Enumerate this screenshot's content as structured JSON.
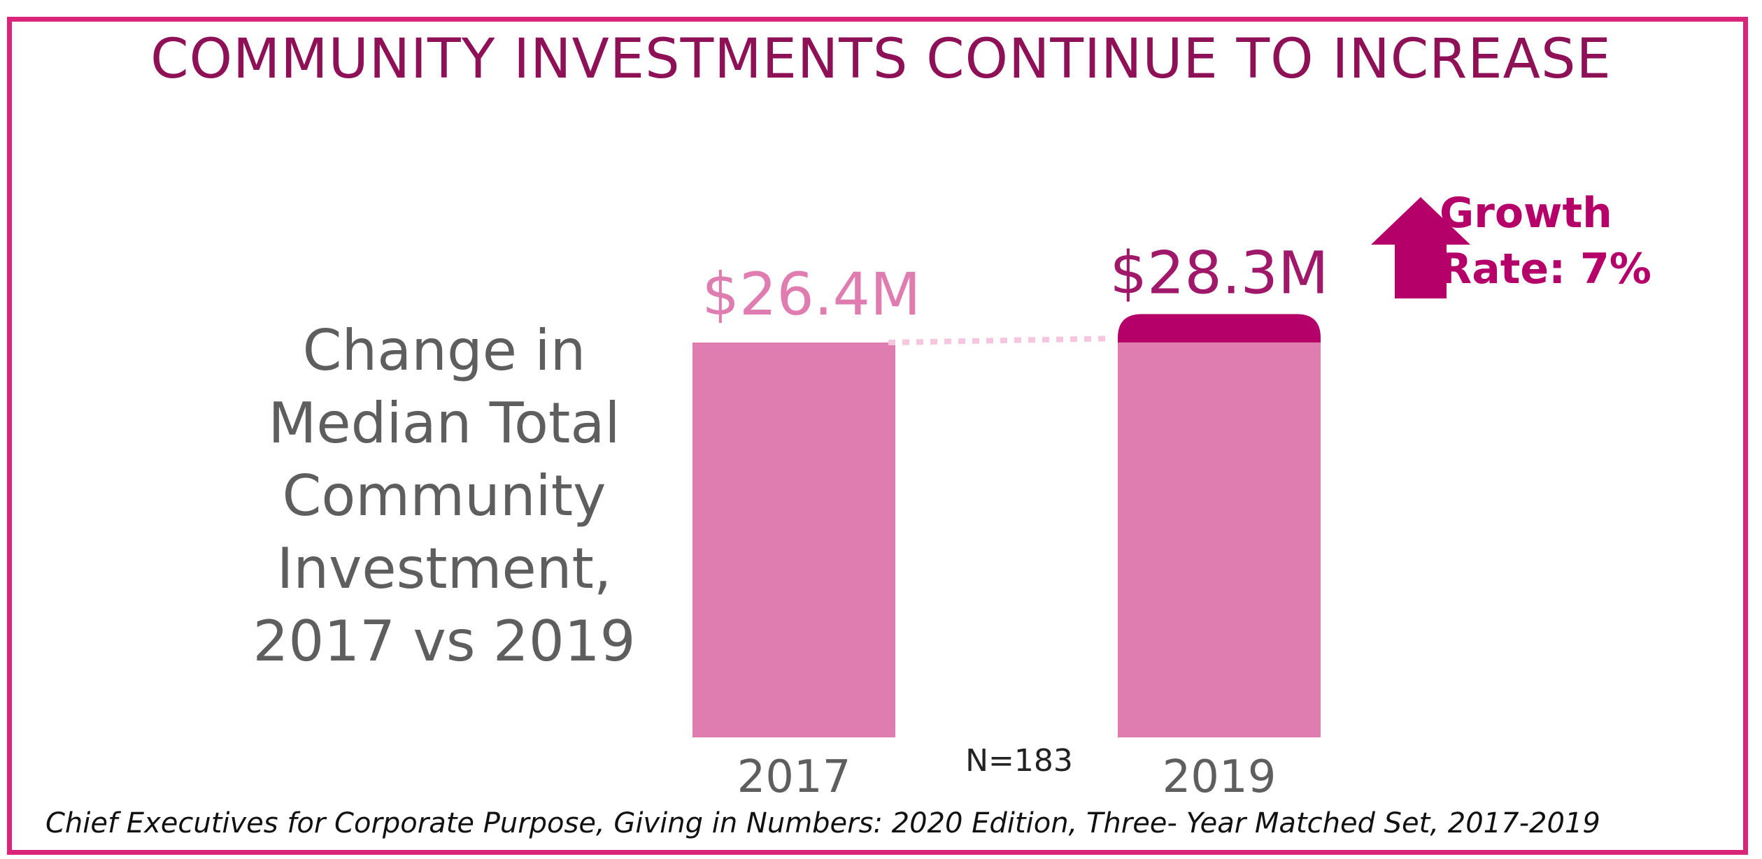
{
  "title": "COMMUNITY INVESTMENTS CONTINUE TO INCREASE",
  "side_label_lines": [
    "Change in",
    "Median Total",
    "Community",
    "Investment,",
    "2017 vs 2019"
  ],
  "sample_note": "N=183",
  "growth_label_lines": [
    "Growth",
    "Rate: 7%"
  ],
  "source": "Chief Executives for Corporate Purpose, Giving in Numbers: 2020 Edition, Three- Year Matched Set, 2017-2019",
  "colors": {
    "frame": "#d9257a",
    "title": "#8e1057",
    "bar_base": "#e07db0",
    "bar_growth": "#b5006a",
    "label_2017": "#e07db0",
    "label_2019": "#a0186a",
    "connector": "#f6c6de",
    "arrow": "#b5006a",
    "text_gray": "#5e5e5e"
  },
  "chart_data": {
    "type": "bar",
    "categories": [
      "2017",
      "2019"
    ],
    "values": [
      26.4,
      28.3
    ],
    "value_labels": [
      "$26.4M",
      "$28.3M"
    ],
    "growth_segment": {
      "category": "2019",
      "base": 26.4,
      "top": 28.3
    },
    "title": "COMMUNITY INVESTMENTS CONTINUE TO INCREASE",
    "xlabel": "",
    "ylabel": "",
    "grid": false,
    "legend": "none"
  }
}
